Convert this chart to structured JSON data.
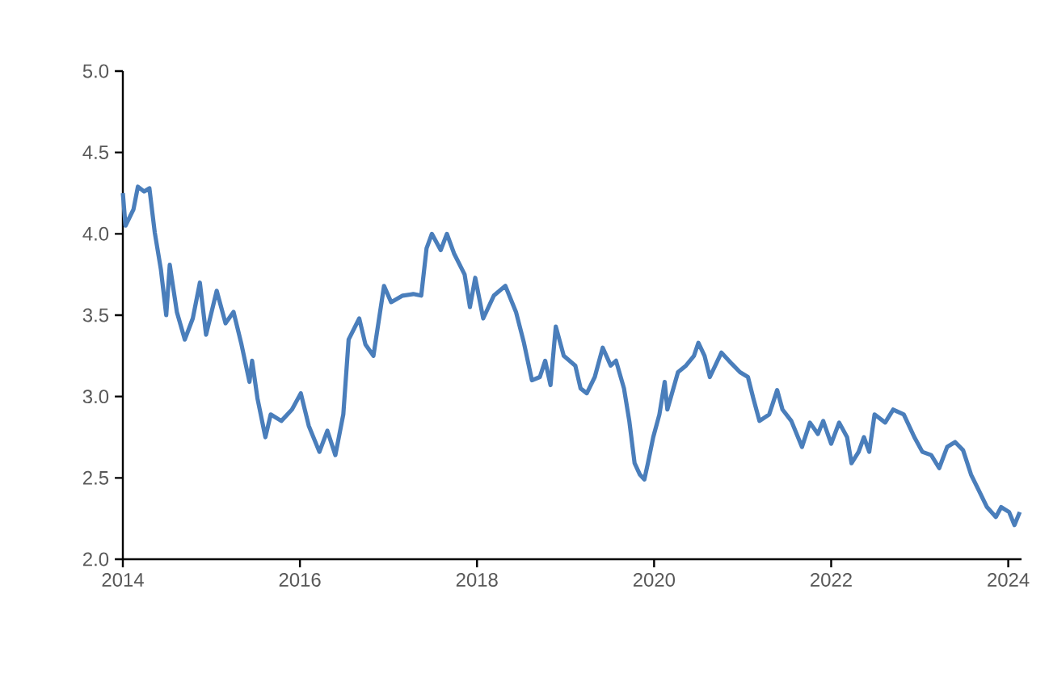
{
  "chart_data": {
    "type": "line",
    "x": [
      2014.0,
      2014.03,
      2014.12,
      2014.17,
      2014.24,
      2014.3,
      2014.36,
      2014.43,
      2014.49,
      2014.53,
      2014.61,
      2014.7,
      2014.79,
      2014.87,
      2014.94,
      2015.06,
      2015.16,
      2015.25,
      2015.34,
      2015.43,
      2015.46,
      2015.52,
      2015.61,
      2015.67,
      2015.79,
      2015.91,
      2016.01,
      2016.1,
      2016.22,
      2016.31,
      2016.4,
      2016.49,
      2016.55,
      2016.67,
      2016.74,
      2016.83,
      2016.95,
      2017.03,
      2017.16,
      2017.28,
      2017.37,
      2017.43,
      2017.49,
      2017.59,
      2017.66,
      2017.74,
      2017.86,
      2017.92,
      2017.98,
      2018.07,
      2018.19,
      2018.32,
      2018.44,
      2018.53,
      2018.62,
      2018.71,
      2018.77,
      2018.83,
      2018.89,
      2018.98,
      2019.11,
      2019.17,
      2019.24,
      2019.33,
      2019.42,
      2019.51,
      2019.57,
      2019.66,
      2019.72,
      2019.78,
      2019.84,
      2019.89,
      2019.93,
      2019.99,
      2020.06,
      2020.12,
      2020.15,
      2020.27,
      2020.36,
      2020.45,
      2020.5,
      2020.57,
      2020.63,
      2020.76,
      2020.88,
      2020.97,
      2021.06,
      2021.12,
      2021.19,
      2021.3,
      2021.39,
      2021.45,
      2021.55,
      2021.67,
      2021.76,
      2021.85,
      2021.91,
      2022.0,
      2022.09,
      2022.18,
      2022.23,
      2022.31,
      2022.37,
      2022.43,
      2022.49,
      2022.61,
      2022.7,
      2022.82,
      2022.94,
      2023.03,
      2023.13,
      2023.22,
      2023.31,
      2023.4,
      2023.49,
      2023.58,
      2023.67,
      2023.76,
      2023.86,
      2023.92,
      2024.01,
      2024.07,
      2024.13
    ],
    "series": [
      {
        "color": "#4a7ebb",
        "values": [
          4.25,
          4.05,
          4.15,
          4.29,
          4.26,
          4.28,
          4.01,
          3.78,
          3.5,
          3.81,
          3.52,
          3.35,
          3.48,
          3.7,
          3.38,
          3.65,
          3.45,
          3.52,
          3.32,
          3.09,
          3.22,
          2.99,
          2.75,
          2.89,
          2.85,
          2.92,
          3.02,
          2.82,
          2.66,
          2.79,
          2.64,
          2.89,
          3.35,
          3.48,
          3.32,
          3.25,
          3.68,
          3.58,
          3.62,
          3.63,
          3.62,
          3.91,
          4.0,
          3.9,
          4.0,
          3.88,
          3.75,
          3.55,
          3.73,
          3.48,
          3.62,
          3.68,
          3.52,
          3.33,
          3.1,
          3.12,
          3.22,
          3.07,
          3.43,
          3.25,
          3.19,
          3.05,
          3.02,
          3.12,
          3.3,
          3.19,
          3.22,
          3.05,
          2.85,
          2.59,
          2.52,
          2.49,
          2.59,
          2.75,
          2.89,
          3.09,
          2.92,
          3.15,
          3.19,
          3.25,
          3.33,
          3.25,
          3.12,
          3.27,
          3.2,
          3.15,
          3.12,
          2.99,
          2.85,
          2.89,
          3.04,
          2.92,
          2.85,
          2.69,
          2.84,
          2.77,
          2.85,
          2.71,
          2.84,
          2.75,
          2.59,
          2.66,
          2.75,
          2.66,
          2.89,
          2.84,
          2.92,
          2.89,
          2.75,
          2.66,
          2.64,
          2.56,
          2.69,
          2.72,
          2.67,
          2.52,
          2.42,
          2.32,
          2.26,
          2.32,
          2.29,
          2.21,
          2.29
        ]
      }
    ],
    "xlim": [
      2014,
      2024.15
    ],
    "ylim": [
      2.0,
      5.0
    ],
    "xticks": [
      2014,
      2016,
      2018,
      2020,
      2022,
      2024
    ],
    "yticks": [
      {
        "value": 2.0,
        "label": "2.0"
      },
      {
        "value": 2.5,
        "label": "2.5"
      },
      {
        "value": 3.0,
        "label": "3.0"
      },
      {
        "value": 3.5,
        "label": "3.5"
      },
      {
        "value": 4.0,
        "label": "4.0"
      },
      {
        "value": 4.5,
        "label": "4.5"
      },
      {
        "value": 5.0,
        "label": "5.0"
      }
    ]
  }
}
